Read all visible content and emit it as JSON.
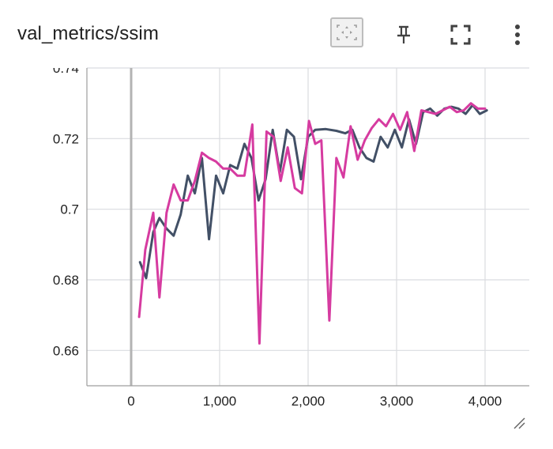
{
  "card": {
    "title": "val_metrics/ssim",
    "tools": {
      "fit": "fit-domain-icon",
      "pin": "pin-icon",
      "fullscreen": "fullscreen-icon",
      "more": "more-vert-icon"
    },
    "resize": "resize-handle-icon"
  },
  "colors": {
    "series_dark": "#425066",
    "series_pink": "#d63ba0",
    "grid": "#dadce0",
    "axis": "#9e9e9e",
    "zero_line": "#b3b3b3",
    "tick_text": "#212121"
  },
  "chart_data": {
    "type": "line",
    "title": "",
    "xlabel": "",
    "ylabel": "",
    "xlim": [
      -500,
      4500
    ],
    "ylim": [
      0.65,
      0.74
    ],
    "grid": true,
    "x_ticks": [
      0,
      1000,
      2000,
      3000,
      4000
    ],
    "x_tick_labels": [
      "0",
      "1,000",
      "2,000",
      "3,000",
      "4,000"
    ],
    "y_ticks": [
      0.66,
      0.68,
      0.7,
      0.72,
      0.74
    ],
    "y_tick_labels": [
      "0.66",
      "0.68",
      "0.7",
      "0.72",
      "0.74"
    ],
    "series": [
      {
        "color": "#425066",
        "points": [
          [
            100,
            0.685
          ],
          [
            170,
            0.6805
          ],
          [
            250,
            0.6935
          ],
          [
            320,
            0.6975
          ],
          [
            400,
            0.6945
          ],
          [
            480,
            0.6925
          ],
          [
            560,
            0.6985
          ],
          [
            640,
            0.7095
          ],
          [
            720,
            0.7045
          ],
          [
            800,
            0.7145
          ],
          [
            880,
            0.6915
          ],
          [
            960,
            0.7095
          ],
          [
            1040,
            0.7045
          ],
          [
            1120,
            0.7125
          ],
          [
            1200,
            0.7115
          ],
          [
            1280,
            0.7185
          ],
          [
            1360,
            0.7145
          ],
          [
            1440,
            0.7025
          ],
          [
            1520,
            0.7085
          ],
          [
            1600,
            0.7225
          ],
          [
            1680,
            0.7105
          ],
          [
            1760,
            0.7225
          ],
          [
            1840,
            0.7205
          ],
          [
            1920,
            0.7085
          ],
          [
            2000,
            0.7205
          ],
          [
            2080,
            0.7225
          ],
          [
            2200,
            0.7227
          ],
          [
            2320,
            0.7222
          ],
          [
            2420,
            0.7215
          ],
          [
            2500,
            0.7225
          ],
          [
            2580,
            0.7175
          ],
          [
            2660,
            0.7145
          ],
          [
            2740,
            0.7135
          ],
          [
            2820,
            0.7205
          ],
          [
            2900,
            0.7175
          ],
          [
            2980,
            0.7225
          ],
          [
            3060,
            0.7175
          ],
          [
            3140,
            0.7255
          ],
          [
            3220,
            0.7185
          ],
          [
            3300,
            0.7275
          ],
          [
            3380,
            0.7285
          ],
          [
            3460,
            0.7265
          ],
          [
            3540,
            0.7285
          ],
          [
            3620,
            0.729
          ],
          [
            3700,
            0.7285
          ],
          [
            3780,
            0.727
          ],
          [
            3860,
            0.7295
          ],
          [
            3940,
            0.727
          ],
          [
            4020,
            0.728
          ]
        ]
      },
      {
        "color": "#d63ba0",
        "points": [
          [
            90,
            0.6695
          ],
          [
            160,
            0.6885
          ],
          [
            250,
            0.699
          ],
          [
            320,
            0.675
          ],
          [
            400,
            0.699
          ],
          [
            480,
            0.707
          ],
          [
            560,
            0.7025
          ],
          [
            640,
            0.7025
          ],
          [
            720,
            0.708
          ],
          [
            800,
            0.716
          ],
          [
            880,
            0.7145
          ],
          [
            960,
            0.7135
          ],
          [
            1040,
            0.7115
          ],
          [
            1120,
            0.7115
          ],
          [
            1200,
            0.7095
          ],
          [
            1280,
            0.7095
          ],
          [
            1370,
            0.724
          ],
          [
            1450,
            0.662
          ],
          [
            1530,
            0.722
          ],
          [
            1610,
            0.7205
          ],
          [
            1690,
            0.708
          ],
          [
            1770,
            0.7175
          ],
          [
            1850,
            0.706
          ],
          [
            1930,
            0.7045
          ],
          [
            2010,
            0.725
          ],
          [
            2080,
            0.7185
          ],
          [
            2150,
            0.7195
          ],
          [
            2240,
            0.6685
          ],
          [
            2320,
            0.7145
          ],
          [
            2400,
            0.709
          ],
          [
            2480,
            0.7235
          ],
          [
            2560,
            0.714
          ],
          [
            2640,
            0.7195
          ],
          [
            2720,
            0.723
          ],
          [
            2800,
            0.7255
          ],
          [
            2880,
            0.7235
          ],
          [
            2960,
            0.727
          ],
          [
            3040,
            0.7225
          ],
          [
            3120,
            0.7275
          ],
          [
            3200,
            0.7165
          ],
          [
            3280,
            0.728
          ],
          [
            3360,
            0.7275
          ],
          [
            3440,
            0.727
          ],
          [
            3520,
            0.728
          ],
          [
            3600,
            0.729
          ],
          [
            3680,
            0.7275
          ],
          [
            3760,
            0.728
          ],
          [
            3840,
            0.73
          ],
          [
            3920,
            0.7285
          ],
          [
            4000,
            0.7285
          ]
        ]
      }
    ]
  }
}
